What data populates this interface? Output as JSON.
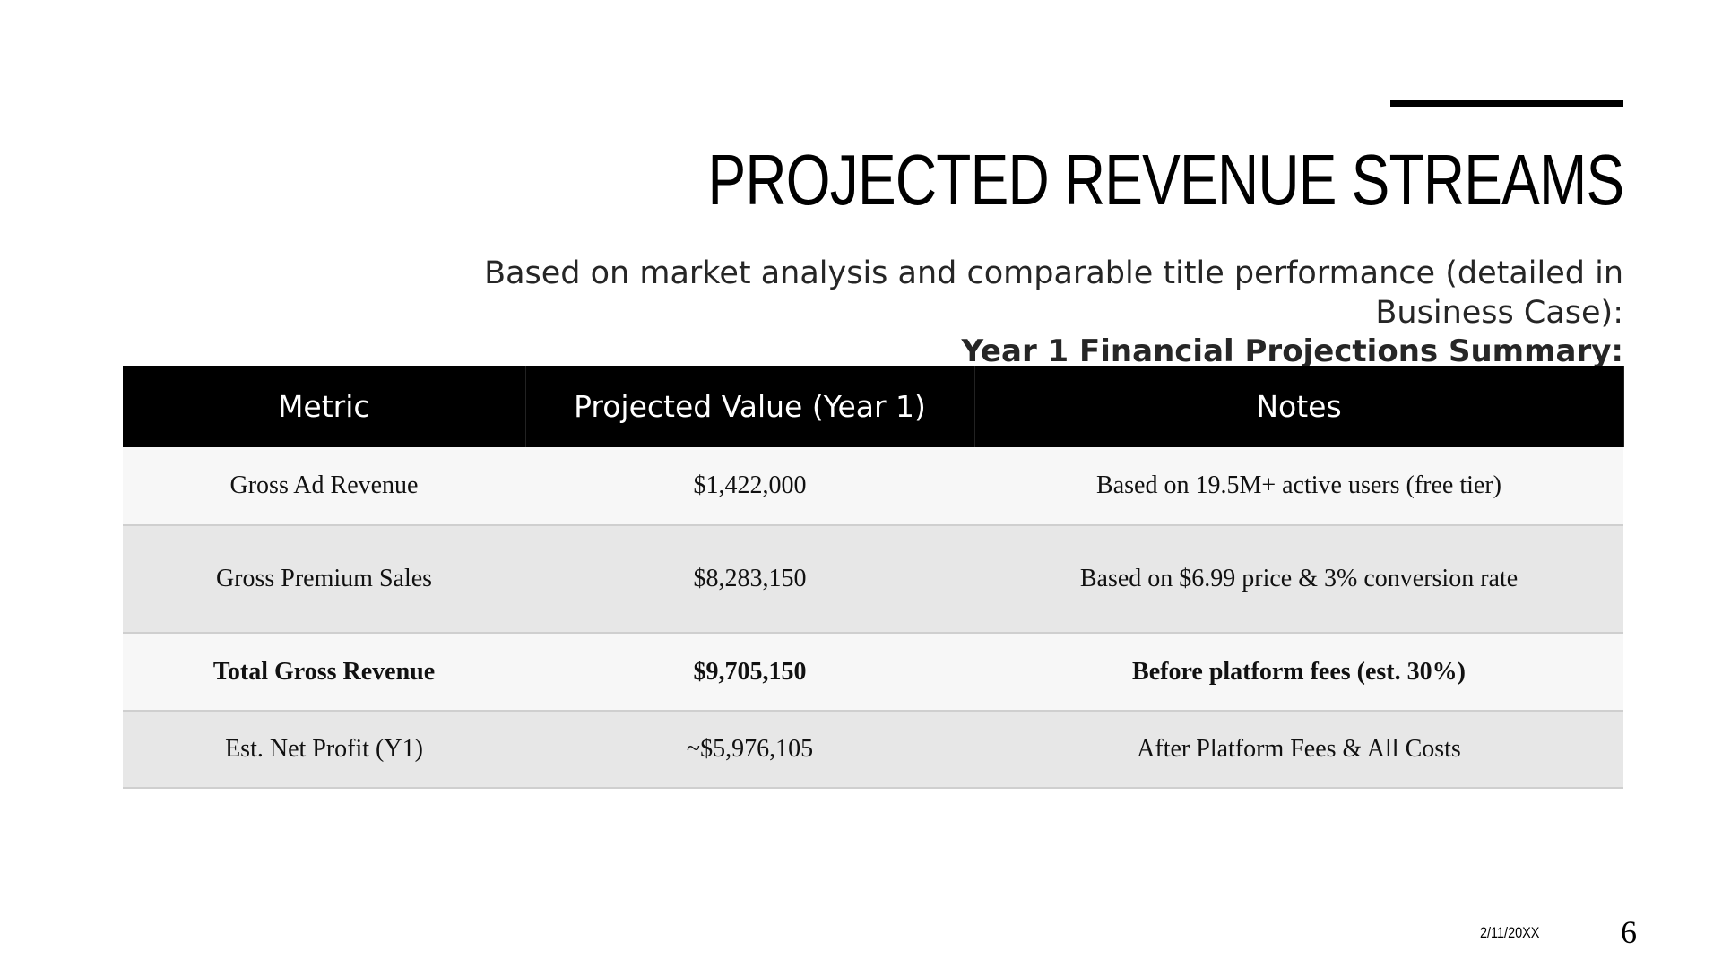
{
  "header": {
    "title": "PROJECTED REVENUE STREAMS",
    "subtitle": "Based on market analysis and comparable title performance (detailed in Business Case):",
    "table_heading": "Year 1 Financial Projections Summary:"
  },
  "table": {
    "columns": [
      "Metric",
      "Projected Value (Year 1)",
      "Notes"
    ],
    "rows": [
      [
        "Gross Ad Revenue",
        "$1,422,000",
        "Based on 19.5M+ active users (free tier)"
      ],
      [
        "Gross Premium Sales",
        "$8,283,150",
        "Based on $6.99 price & 3% conversion rate"
      ],
      [
        "Total Gross Revenue",
        "$9,705,150",
        "Before platform fees (est. 30%)"
      ],
      [
        "Est. Net Profit (Y1)",
        "~$5,976,105",
        "After Platform Fees & All Costs"
      ]
    ]
  },
  "footer": {
    "date": "2/11/20XX",
    "page": "6"
  }
}
